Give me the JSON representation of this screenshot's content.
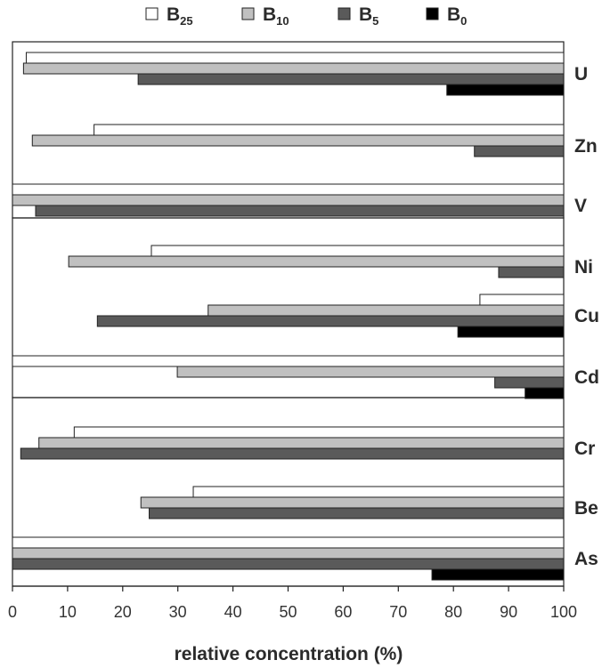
{
  "chart_data": {
    "type": "bar",
    "orientation": "horizontal",
    "xlabel": "relative concentration (%)",
    "ylabel": "",
    "xlim": [
      0,
      100
    ],
    "xticks": [
      0,
      10,
      20,
      30,
      40,
      50,
      60,
      70,
      80,
      90,
      100
    ],
    "grid": false,
    "legend_position": "top",
    "categories": [
      "U",
      "Zn",
      "V",
      "Ni",
      "Cu",
      "Cd",
      "Cr",
      "Be",
      "As"
    ],
    "groups": [
      [
        "U",
        "Zn",
        "V"
      ],
      [
        "Ni",
        "Cu",
        "Cd"
      ],
      [
        "Cr",
        "Be",
        "As"
      ]
    ],
    "bars_extend_from": "right",
    "series": [
      {
        "name": "B",
        "subscript": "25",
        "color": "#ffffff",
        "values": [
          97.5,
          85.2,
          100,
          74.8,
          15.2,
          100,
          88.8,
          67.2,
          100
        ]
      },
      {
        "name": "B",
        "subscript": "10",
        "color": "#c0c0c0",
        "values": [
          98,
          96.4,
          100,
          89.8,
          64.5,
          70.1,
          95.2,
          76.7,
          100
        ]
      },
      {
        "name": "B",
        "subscript": "5",
        "color": "#5a5a5a",
        "values": [
          77.2,
          16.2,
          95.8,
          11.8,
          84.6,
          12.5,
          98.5,
          75.2,
          100
        ]
      },
      {
        "name": "B",
        "subscript": "0",
        "color": "#000000",
        "values": [
          21.2,
          0,
          0,
          0,
          19.2,
          7,
          0,
          0,
          23.9
        ]
      }
    ]
  }
}
